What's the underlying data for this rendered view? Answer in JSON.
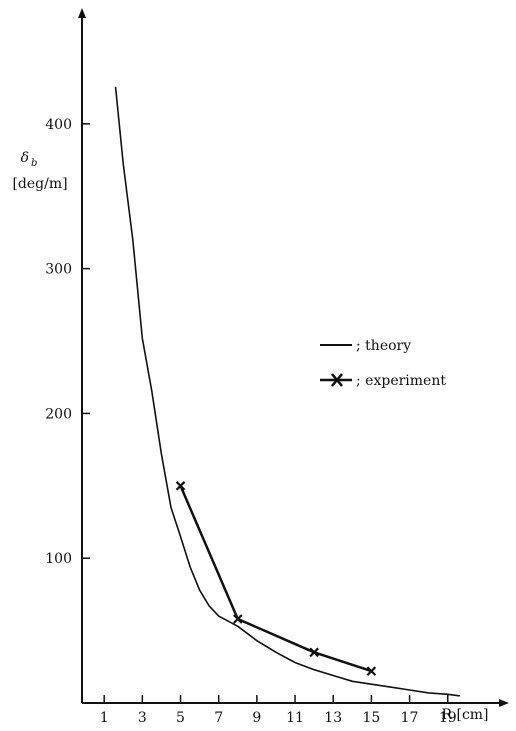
{
  "chart_data": {
    "type": "line",
    "title": "",
    "ylabel_symbol": "δ",
    "ylabel_subscript": "b",
    "ylabel_unit": "[deg/m]",
    "xlabel": "R [cm]",
    "xlim": [
      -1,
      22
    ],
    "ylim": [
      0,
      480
    ],
    "xticks": [
      1,
      3,
      5,
      7,
      9,
      11,
      13,
      15,
      17,
      19
    ],
    "yticks": [
      100,
      200,
      300,
      400
    ],
    "grid": false,
    "legend_position": "right",
    "legend_separator": "; ",
    "series": [
      {
        "name": "theory",
        "marker": "none",
        "x": [
          1.6,
          2.0,
          2.5,
          3.0,
          3.5,
          4.0,
          4.5,
          5.0,
          5.5,
          6.0,
          6.5,
          7.0,
          8.0,
          9.0,
          10.0,
          11.0,
          12.0,
          13.0,
          14.0,
          15.0,
          16.0,
          17.0,
          18.0,
          19.0,
          19.6
        ],
        "y": [
          425,
          372,
          320,
          252,
          215,
          172,
          135,
          115,
          94,
          78,
          67,
          60,
          53,
          43,
          35,
          28,
          23,
          19,
          15,
          13,
          11,
          9,
          7,
          6,
          5
        ]
      },
      {
        "name": "experiment",
        "marker": "x",
        "x": [
          5,
          8,
          12,
          15
        ],
        "y": [
          150,
          58,
          35,
          22
        ]
      }
    ],
    "colors": {
      "line": "#111111",
      "background": "#ffffff"
    }
  }
}
